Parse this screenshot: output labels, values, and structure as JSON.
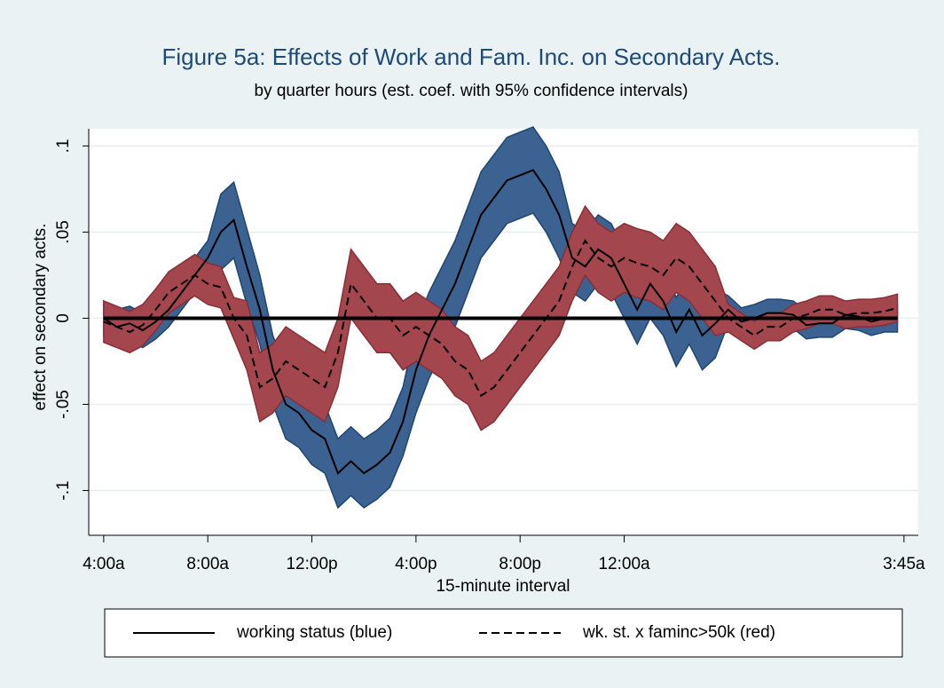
{
  "chart_data": {
    "type": "band-line",
    "title": "Figure 5a: Effects of Work and Fam. Inc. on Secondary Acts.",
    "subtitle": "by quarter hours (est. coef. with 95% confidence intervals)",
    "x_label": "15-minute interval",
    "y_label": "effect on secondary acts.",
    "x": [
      0,
      2,
      4,
      6,
      8,
      10,
      12,
      14,
      16,
      18,
      20,
      22,
      24,
      26,
      28,
      30,
      32,
      34,
      36,
      38,
      40,
      42,
      44,
      46,
      48,
      50,
      52,
      54,
      56,
      58,
      60,
      62,
      64,
      66,
      68,
      70,
      72,
      74,
      76,
      78,
      80,
      82,
      84,
      86,
      88,
      90,
      92,
      94,
      96,
      98,
      100,
      102,
      104,
      106,
      108,
      110,
      112,
      114,
      116,
      118,
      120,
      122
    ],
    "xlim": [
      -2.3,
      125.2
    ],
    "xticks": [
      {
        "value": 0,
        "label": "4:00a"
      },
      {
        "value": 16,
        "label": "8:00a"
      },
      {
        "value": 32,
        "label": "12:00p"
      },
      {
        "value": 48,
        "label": "4:00p"
      },
      {
        "value": 64,
        "label": "8:00p"
      },
      {
        "value": 80,
        "label": "12:00a"
      },
      {
        "value": 123,
        "label": "3:45a"
      }
    ],
    "ylim": [
      -0.126,
      0.11
    ],
    "yticks": [
      {
        "value": 0.1,
        "label": ".1"
      },
      {
        "value": 0.05,
        "label": ".05"
      },
      0,
      {
        "value": -0.05,
        "label": "-.05"
      },
      {
        "value": -0.1,
        "label": "-.1"
      }
    ],
    "grid": true,
    "reference_line": 0,
    "legend": "bottom",
    "series": [
      {
        "name": "working status (blue)",
        "color": "#000000",
        "band_color": "#3b6290",
        "band_edge": "#1f4672",
        "dashed": false,
        "values": [
          0,
          -0.005,
          -0.003,
          -0.007,
          -0.002,
          0.005,
          0.015,
          0.025,
          0.035,
          0.05,
          0.057,
          0.03,
          0.005,
          -0.03,
          -0.05,
          -0.055,
          -0.065,
          -0.07,
          -0.09,
          -0.083,
          -0.09,
          -0.085,
          -0.078,
          -0.06,
          -0.03,
          -0.01,
          0.005,
          0.02,
          0.04,
          0.06,
          0.07,
          0.08,
          0.083,
          0.086,
          0.075,
          0.06,
          0.035,
          0.03,
          0.04,
          0.035,
          0.02,
          0.005,
          0.02,
          0.01,
          -0.008,
          0.005,
          -0.01,
          -0.003,
          0.005,
          -0.002,
          0,
          0.003,
          0.003,
          0.002,
          -0.004,
          -0.003,
          -0.003,
          0.002,
          0.001,
          -0.002,
          0,
          0
        ],
        "upper": [
          0.01,
          0.005,
          0.007,
          0.003,
          0.008,
          0.015,
          0.025,
          0.035,
          0.045,
          0.072,
          0.079,
          0.052,
          0.025,
          -0.01,
          -0.03,
          -0.035,
          -0.045,
          -0.05,
          -0.07,
          -0.063,
          -0.07,
          -0.065,
          -0.058,
          -0.04,
          -0.005,
          0.015,
          0.03,
          0.045,
          0.065,
          0.085,
          0.095,
          0.105,
          0.108,
          0.111,
          0.1,
          0.085,
          0.055,
          0.05,
          0.06,
          0.055,
          0.04,
          0.025,
          0.04,
          0.03,
          0.012,
          0.025,
          0.01,
          0.017,
          0.013,
          0.006,
          0.008,
          0.011,
          0.011,
          0.01,
          0.004,
          0.005,
          0.005,
          0.01,
          0.009,
          0.006,
          0.008,
          0.008
        ],
        "lower": [
          -0.01,
          -0.015,
          -0.013,
          -0.017,
          -0.012,
          -0.005,
          0.005,
          0.015,
          0.025,
          0.028,
          0.035,
          0.008,
          -0.015,
          -0.05,
          -0.07,
          -0.075,
          -0.085,
          -0.09,
          -0.11,
          -0.103,
          -0.11,
          -0.105,
          -0.098,
          -0.08,
          -0.055,
          -0.035,
          -0.02,
          -0.005,
          0.015,
          0.035,
          0.045,
          0.055,
          0.058,
          0.061,
          0.05,
          0.035,
          0.015,
          0.01,
          0.02,
          0.015,
          0,
          -0.015,
          0,
          -0.01,
          -0.028,
          -0.015,
          -0.03,
          -0.023,
          -0.003,
          -0.01,
          -0.008,
          -0.005,
          -0.005,
          -0.006,
          -0.012,
          -0.011,
          -0.011,
          -0.006,
          -0.007,
          -0.01,
          -0.008,
          -0.008
        ]
      },
      {
        "name": "wk. st. x faminc>50k (red)",
        "color": "#000000",
        "band_color": "#a4464e",
        "band_edge": "#8a2e36",
        "dashed": true,
        "values": [
          -0.002,
          -0.005,
          -0.008,
          -0.004,
          0.005,
          0.015,
          0.02,
          0.025,
          0.02,
          0.018,
          0,
          -0.01,
          -0.04,
          -0.035,
          -0.025,
          -0.03,
          -0.035,
          -0.04,
          -0.02,
          0.02,
          0.01,
          0,
          0,
          -0.01,
          -0.005,
          -0.01,
          -0.015,
          -0.025,
          -0.03,
          -0.045,
          -0.04,
          -0.03,
          -0.02,
          -0.01,
          0,
          0.01,
          0.03,
          0.045,
          0.035,
          0.03,
          0.035,
          0.032,
          0.03,
          0.025,
          0.035,
          0.03,
          0.02,
          0.01,
          0,
          -0.005,
          -0.01,
          -0.005,
          -0.005,
          0,
          0.002,
          0.005,
          0.005,
          0.002,
          0.003,
          0.003,
          0.004,
          0.006
        ],
        "upper": [
          0.01,
          0.007,
          0.004,
          0.008,
          0.017,
          0.027,
          0.032,
          0.037,
          0.032,
          0.03,
          0.012,
          0.01,
          -0.02,
          -0.015,
          -0.005,
          -0.01,
          -0.015,
          -0.02,
          0,
          0.04,
          0.03,
          0.02,
          0.02,
          0.01,
          0.015,
          0.01,
          0.005,
          -0.005,
          -0.01,
          -0.025,
          -0.02,
          -0.01,
          0,
          0.01,
          0.02,
          0.03,
          0.05,
          0.065,
          0.055,
          0.05,
          0.055,
          0.052,
          0.05,
          0.045,
          0.055,
          0.05,
          0.04,
          0.03,
          0.008,
          0.003,
          -0.002,
          0.003,
          0.003,
          0.008,
          0.01,
          0.013,
          0.013,
          0.01,
          0.011,
          0.011,
          0.012,
          0.014
        ],
        "lower": [
          -0.014,
          -0.017,
          -0.02,
          -0.016,
          -0.007,
          0.003,
          0.008,
          0.013,
          0.008,
          0.006,
          -0.012,
          -0.03,
          -0.06,
          -0.055,
          -0.045,
          -0.05,
          -0.055,
          -0.06,
          -0.04,
          0,
          -0.01,
          -0.02,
          -0.02,
          -0.03,
          -0.025,
          -0.03,
          -0.035,
          -0.045,
          -0.05,
          -0.065,
          -0.06,
          -0.05,
          -0.04,
          -0.03,
          -0.02,
          -0.01,
          0.01,
          0.025,
          0.015,
          0.01,
          0.015,
          0.012,
          0.01,
          0.005,
          0.015,
          0.01,
          0,
          -0.01,
          -0.008,
          -0.013,
          -0.018,
          -0.013,
          -0.013,
          -0.008,
          -0.006,
          -0.003,
          -0.003,
          -0.006,
          -0.005,
          -0.005,
          -0.004,
          -0.002
        ]
      }
    ]
  }
}
